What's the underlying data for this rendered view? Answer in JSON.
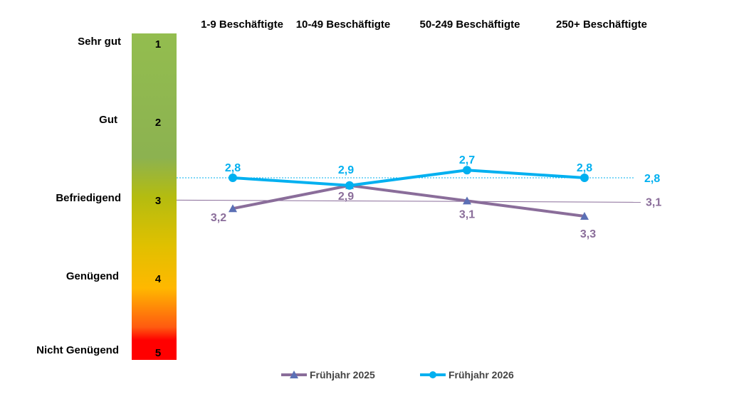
{
  "chart_data": {
    "type": "line",
    "categories": [
      "1-9 Beschäftigte",
      "10-49 Beschäftigte",
      "50-249 Beschäftigte",
      "250+ Beschäftigte"
    ],
    "y_scale": {
      "range": [
        1,
        5
      ],
      "inverted": true,
      "grades": [
        {
          "value": 1,
          "name": "Sehr gut",
          "number": "1"
        },
        {
          "value": 2,
          "name": "Gut",
          "number": "2"
        },
        {
          "value": 3,
          "name": "Befriedigend",
          "number": "3"
        },
        {
          "value": 4,
          "name": "Genügend",
          "number": "4"
        },
        {
          "value": 5,
          "name": "Nicht Genügend",
          "number": "5"
        }
      ]
    },
    "series": [
      {
        "name": "Frühjahr 2025",
        "color": "#8a6d9a",
        "marker": "triangle",
        "marker_color": "#5b6fb5",
        "values": [
          3.2,
          2.9,
          3.1,
          3.3
        ],
        "labels": [
          "3,2",
          "2,9",
          "3,1",
          "3,3"
        ],
        "average": 3.1,
        "average_label": "3,1"
      },
      {
        "name": "Frühjahr 2026",
        "color": "#00b0f0",
        "marker": "circle",
        "marker_color": "#00b0f0",
        "values": [
          2.8,
          2.9,
          2.7,
          2.8
        ],
        "labels": [
          "2,8",
          "2,9",
          "2,7",
          "2,8"
        ],
        "average": 2.8,
        "average_label": "2,8"
      }
    ],
    "legend": "bottom"
  }
}
